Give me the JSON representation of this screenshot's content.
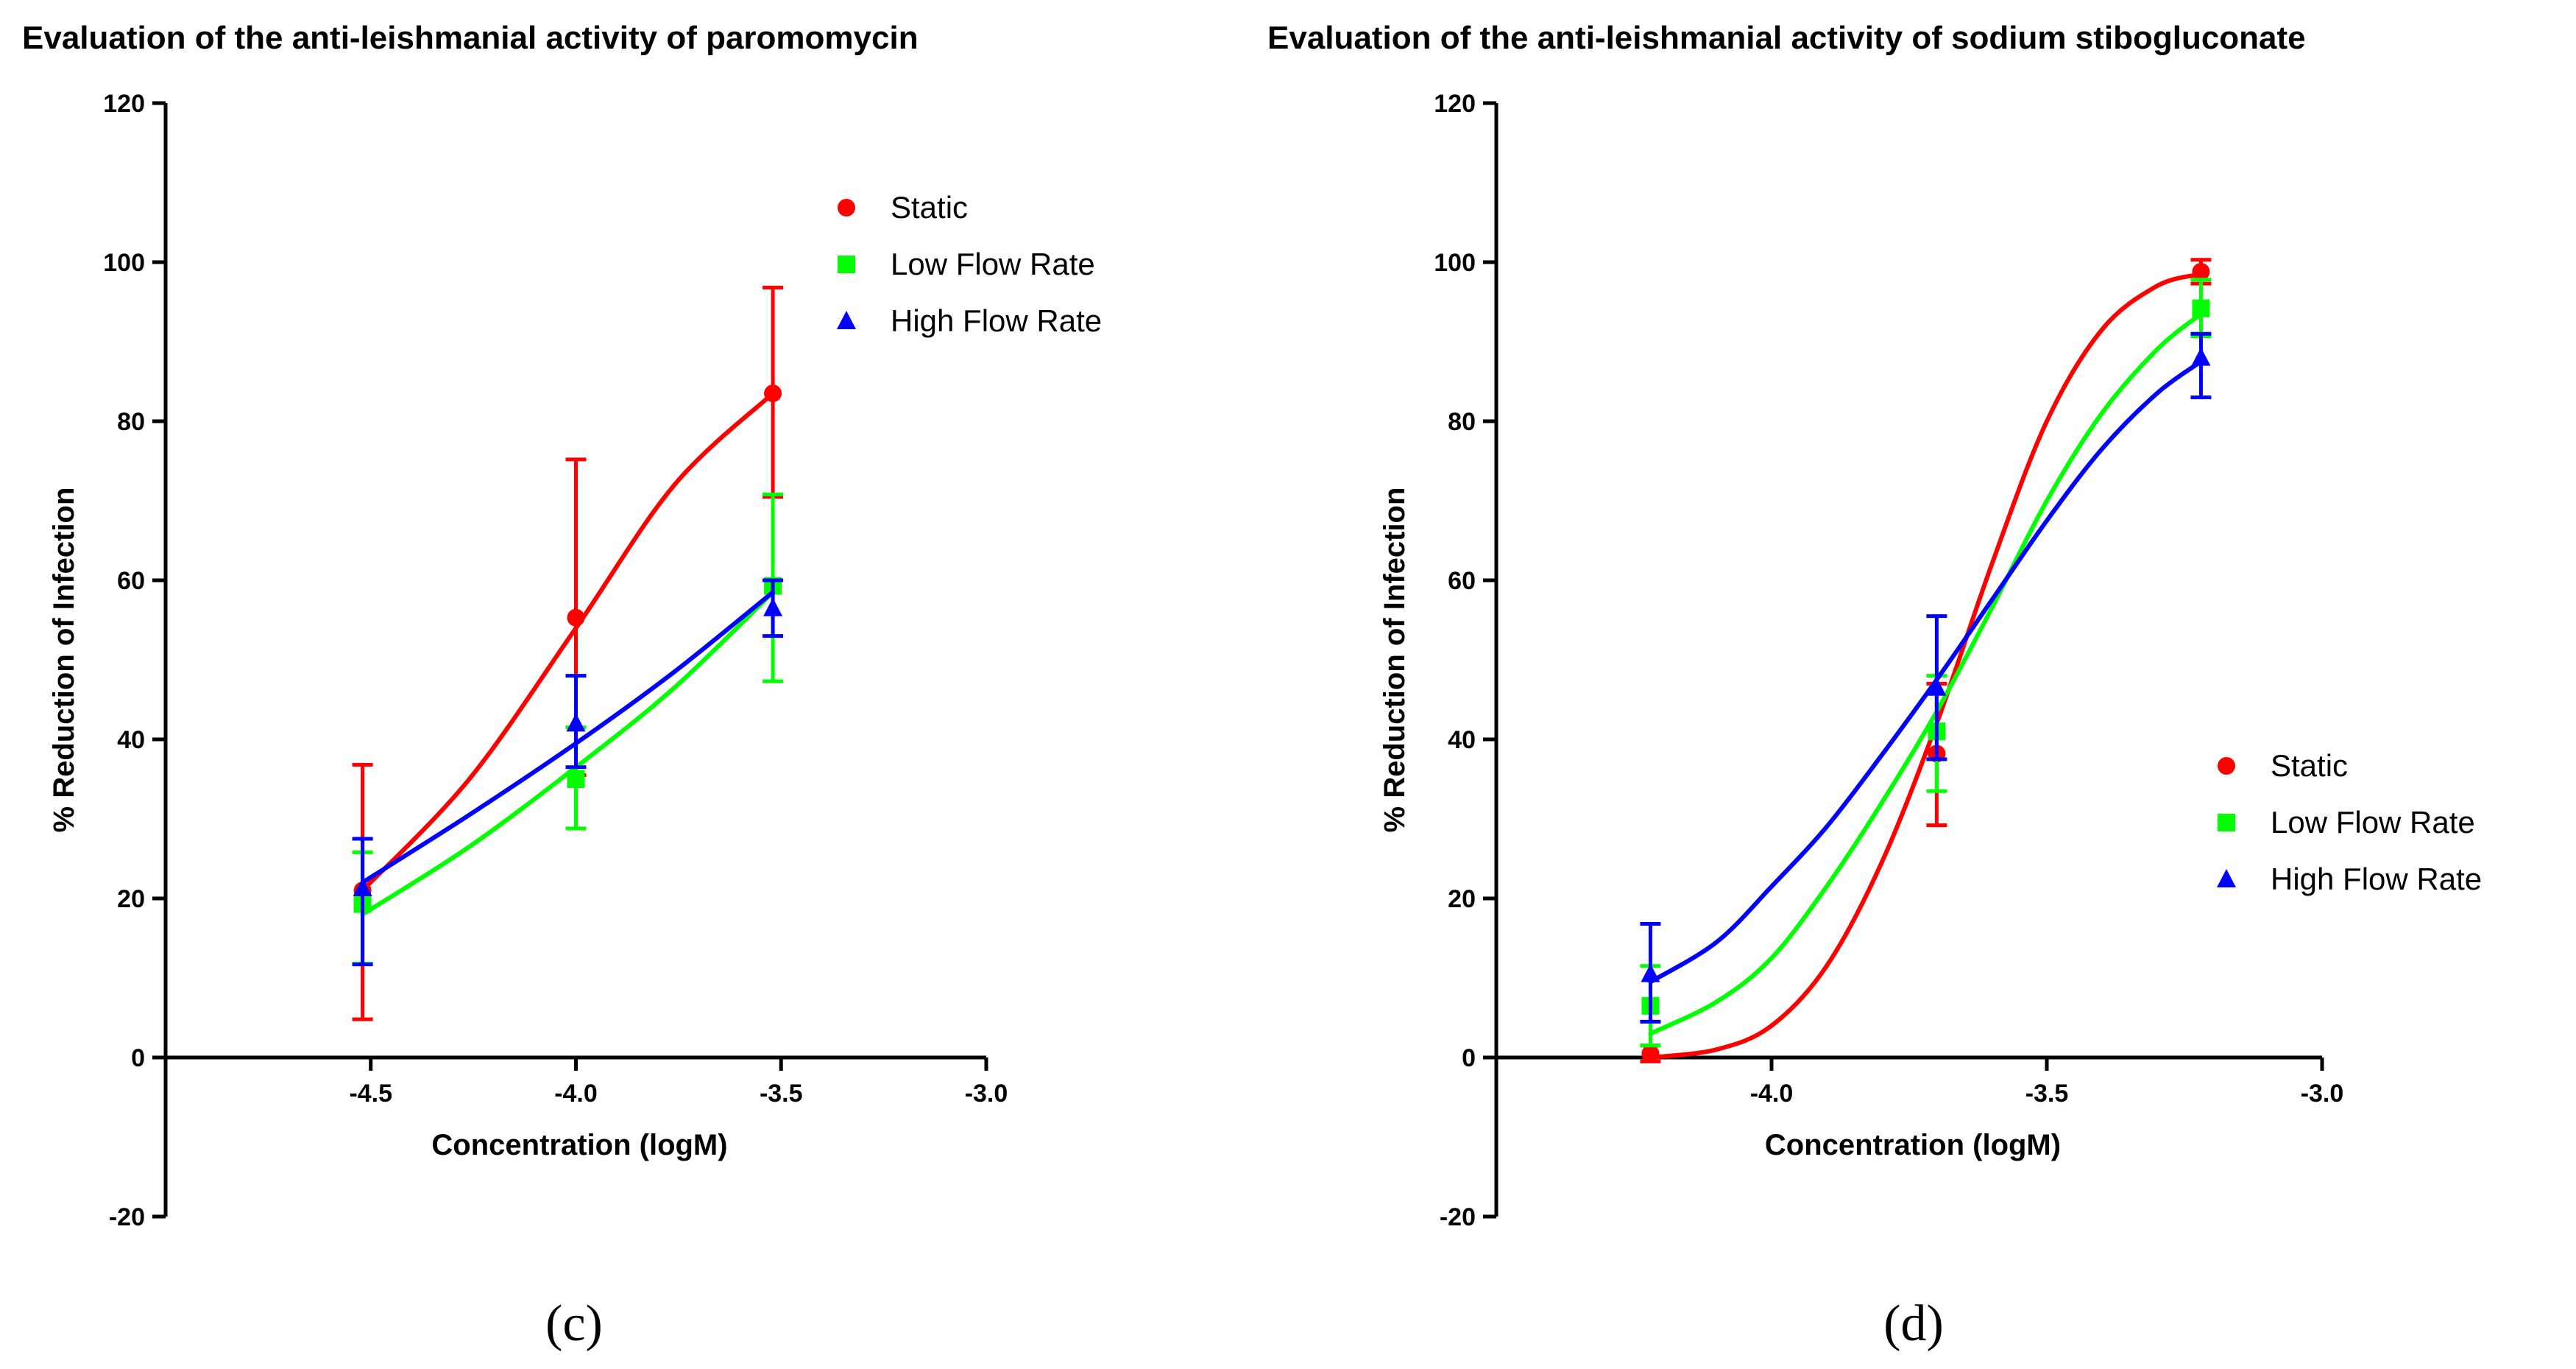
{
  "chart_data": [
    {
      "type": "line",
      "panel_label": "(c)",
      "title": "Evaluation of the anti-leishmanial activity of paromomycin",
      "xlabel": "Concentration (logM)",
      "ylabel": "%  Reduction of Infection",
      "xlim": [
        -5.0,
        -3.0
      ],
      "ylim": [
        -20,
        120
      ],
      "xticks": [
        -4.5,
        -4.0,
        -3.5,
        -3.0
      ],
      "xtick_labels": [
        "-4.5",
        "-4.0",
        "-3.5",
        "-3.0"
      ],
      "yticks": [
        -20,
        0,
        20,
        40,
        60,
        80,
        100,
        120
      ],
      "ytick_labels": [
        "-20",
        "0",
        "20",
        "40",
        "60",
        "80",
        "100",
        "120"
      ],
      "legend_position": "top-right",
      "x": [
        -4.52,
        -4.0,
        -3.52
      ],
      "series": [
        {
          "name": "Static",
          "color": "#ff0000",
          "marker": "circle",
          "values": [
            21,
            55.3,
            83.5
          ],
          "err_low": [
            4.8,
            35.5,
            70.5
          ],
          "err_high": [
            36.8,
            75.2,
            96.8
          ],
          "curve": [
            [
              -4.52,
              21
            ],
            [
              -4.26,
              35
            ],
            [
              -4.0,
              54
            ],
            [
              -3.76,
              72
            ],
            [
              -3.52,
              83.5
            ]
          ]
        },
        {
          "name": "Low Flow  Rate",
          "color": "#00ff00",
          "marker": "square",
          "values": [
            19.3,
            35,
            59.3
          ],
          "err_low": [
            11.8,
            28.8,
            47.3
          ],
          "err_high": [
            25.8,
            41.5,
            70.8
          ],
          "curve": [
            [
              -4.52,
              18
            ],
            [
              -4.26,
              26.5
            ],
            [
              -4.0,
              36.5
            ],
            [
              -3.76,
              46.5
            ],
            [
              -3.52,
              58.5
            ]
          ]
        },
        {
          "name": "High Flow Rate",
          "color": "#0000ff",
          "marker": "triangle",
          "values": [
            21.3,
            42,
            56.5
          ],
          "err_low": [
            11.7,
            36.5,
            53
          ],
          "err_high": [
            27.5,
            48,
            60
          ],
          "curve": [
            [
              -4.52,
              22
            ],
            [
              -4.26,
              30.5
            ],
            [
              -4.0,
              39.5
            ],
            [
              -3.76,
              48.5
            ],
            [
              -3.52,
              58.5
            ]
          ]
        }
      ]
    },
    {
      "type": "line",
      "panel_label": "(d)",
      "title": "Evaluation of the anti-leishmanial activity of sodium stibogluconate",
      "xlabel": "Concentration (logM)",
      "ylabel": "%  Reduction of Infection",
      "xlim": [
        -4.5,
        -3.0
      ],
      "ylim": [
        -20,
        120
      ],
      "xticks": [
        -4.0,
        -3.5,
        -3.0
      ],
      "xtick_labels": [
        "-4.0",
        "-3.5",
        "-3.0"
      ],
      "yticks": [
        -20,
        0,
        20,
        40,
        60,
        80,
        100,
        120
      ],
      "ytick_labels": [
        "-20",
        "0",
        "20",
        "40",
        "60",
        "80",
        "100",
        "120"
      ],
      "legend_position": "right",
      "x": [
        -4.22,
        -3.7,
        -3.22
      ],
      "series": [
        {
          "name": "Static",
          "color": "#ff0000",
          "marker": "circle",
          "values": [
            0.5,
            38.2,
            98.8
          ],
          "err_low": [
            -0.5,
            29.2,
            97.3
          ],
          "err_high": [
            1.5,
            47,
            100.3
          ],
          "curve": [
            [
              -4.22,
              0
            ],
            [
              -4.1,
              1
            ],
            [
              -4.0,
              4
            ],
            [
              -3.9,
              11.5
            ],
            [
              -3.8,
              24.5
            ],
            [
              -3.7,
              42
            ],
            [
              -3.6,
              62
            ],
            [
              -3.5,
              80
            ],
            [
              -3.4,
              91.5
            ],
            [
              -3.3,
              97
            ],
            [
              -3.22,
              98.5
            ]
          ]
        },
        {
          "name": "Low Flow  Rate",
          "color": "#00ff00",
          "marker": "square",
          "values": [
            6.5,
            41,
            94.2
          ],
          "err_low": [
            1.5,
            33.5,
            90.7
          ],
          "err_high": [
            11.5,
            48,
            97.8
          ],
          "curve": [
            [
              -4.22,
              3
            ],
            [
              -4.1,
              7
            ],
            [
              -4.0,
              12.5
            ],
            [
              -3.9,
              21.5
            ],
            [
              -3.8,
              32
            ],
            [
              -3.7,
              43.5
            ],
            [
              -3.6,
              56.5
            ],
            [
              -3.5,
              70
            ],
            [
              -3.4,
              81
            ],
            [
              -3.3,
              89
            ],
            [
              -3.22,
              93.5
            ]
          ]
        },
        {
          "name": "High Flow Rate",
          "color": "#0000ff",
          "marker": "triangle",
          "values": [
            10.5,
            46.5,
            88
          ],
          "err_low": [
            4.5,
            37.5,
            83
          ],
          "err_high": [
            16.8,
            55.5,
            91
          ],
          "curve": [
            [
              -4.22,
              9.5
            ],
            [
              -4.1,
              14.5
            ],
            [
              -4.0,
              21.5
            ],
            [
              -3.9,
              29
            ],
            [
              -3.8,
              38
            ],
            [
              -3.7,
              47.5
            ],
            [
              -3.6,
              57.5
            ],
            [
              -3.5,
              67.5
            ],
            [
              -3.4,
              76.5
            ],
            [
              -3.3,
              83.5
            ],
            [
              -3.22,
              87.5
            ]
          ]
        }
      ]
    }
  ]
}
